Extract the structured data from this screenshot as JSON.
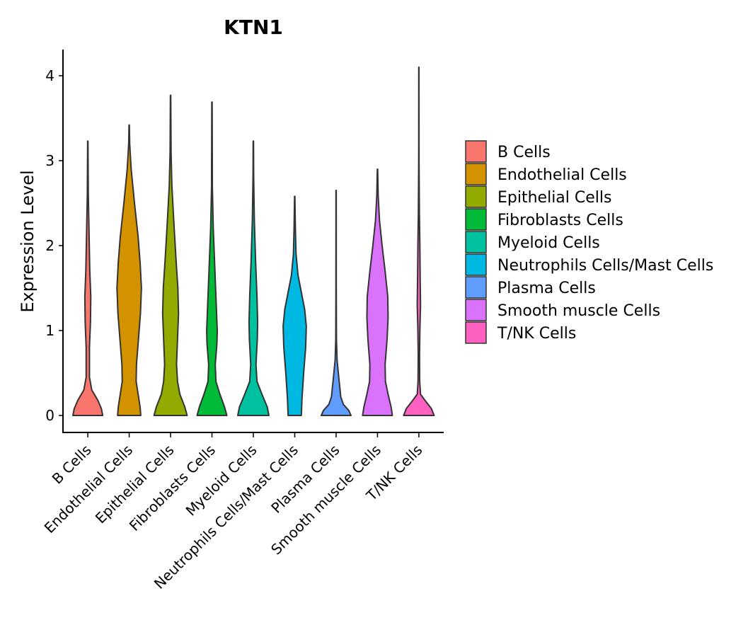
{
  "chart_data": {
    "type": "violin",
    "title": "KTN1",
    "xlabel": "",
    "ylabel": "Expression Level",
    "ylim": [
      0,
      4.3
    ],
    "yticks": [
      0,
      1,
      2,
      3,
      4
    ],
    "legend_position": "right",
    "categories": [
      "B Cells",
      "Endothelial Cells",
      "Epithelial Cells",
      "Fibroblasts Cells",
      "Myeloid Cells",
      "Neutrophils Cells/Mast Cells",
      "Plasma Cells",
      "Smooth muscle Cells",
      "T/NK Cells"
    ],
    "colors": [
      "#F8766D",
      "#D39200",
      "#93AA00",
      "#00BA38",
      "#00C19F",
      "#00B9E3",
      "#619CFF",
      "#DB72FB",
      "#FF61C3"
    ],
    "max_width": 0.8,
    "series": [
      {
        "name": "B Cells",
        "max": 3.23,
        "profile": [
          [
            0,
            0.45
          ],
          [
            0.08,
            0.41
          ],
          [
            0.18,
            0.3
          ],
          [
            0.3,
            0.12
          ],
          [
            0.45,
            0.05
          ],
          [
            0.8,
            0.05
          ],
          [
            1.1,
            0.08
          ],
          [
            1.4,
            0.09
          ],
          [
            1.7,
            0.06
          ],
          [
            2.1,
            0.04
          ],
          [
            2.6,
            0.015
          ],
          [
            3.23,
            0.005
          ]
        ]
      },
      {
        "name": "Endothelial Cells",
        "max": 3.42,
        "profile": [
          [
            0,
            0.35
          ],
          [
            0.1,
            0.33
          ],
          [
            0.25,
            0.27
          ],
          [
            0.4,
            0.21
          ],
          [
            0.6,
            0.22
          ],
          [
            0.9,
            0.28
          ],
          [
            1.2,
            0.34
          ],
          [
            1.5,
            0.37
          ],
          [
            1.8,
            0.33
          ],
          [
            2.1,
            0.27
          ],
          [
            2.5,
            0.16
          ],
          [
            2.9,
            0.06
          ],
          [
            3.2,
            0.015
          ],
          [
            3.42,
            0.005
          ]
        ]
      },
      {
        "name": "Epithelial Cells",
        "max": 3.77,
        "profile": [
          [
            0,
            0.5
          ],
          [
            0.1,
            0.43
          ],
          [
            0.25,
            0.28
          ],
          [
            0.4,
            0.21
          ],
          [
            0.6,
            0.18
          ],
          [
            0.9,
            0.21
          ],
          [
            1.2,
            0.24
          ],
          [
            1.5,
            0.22
          ],
          [
            1.8,
            0.17
          ],
          [
            2.2,
            0.11
          ],
          [
            2.7,
            0.04
          ],
          [
            3.1,
            0.015
          ],
          [
            3.77,
            0.005
          ]
        ]
      },
      {
        "name": "Fibroblasts Cells",
        "max": 3.69,
        "profile": [
          [
            0,
            0.45
          ],
          [
            0.1,
            0.38
          ],
          [
            0.25,
            0.24
          ],
          [
            0.4,
            0.12
          ],
          [
            0.6,
            0.1
          ],
          [
            0.85,
            0.15
          ],
          [
            1.0,
            0.16
          ],
          [
            1.3,
            0.13
          ],
          [
            1.7,
            0.09
          ],
          [
            2.2,
            0.04
          ],
          [
            2.7,
            0.012
          ],
          [
            3.69,
            0.005
          ]
        ]
      },
      {
        "name": "Myeloid Cells",
        "max": 3.23,
        "profile": [
          [
            0,
            0.47
          ],
          [
            0.1,
            0.42
          ],
          [
            0.25,
            0.26
          ],
          [
            0.4,
            0.11
          ],
          [
            0.6,
            0.08
          ],
          [
            0.9,
            0.12
          ],
          [
            1.1,
            0.13
          ],
          [
            1.4,
            0.11
          ],
          [
            1.8,
            0.07
          ],
          [
            2.3,
            0.03
          ],
          [
            2.8,
            0.01
          ],
          [
            3.23,
            0.005
          ]
        ]
      },
      {
        "name": "Neutrophils Cells/Mast Cells",
        "max": 2.58,
        "profile": [
          [
            0,
            0.2
          ],
          [
            0.2,
            0.22
          ],
          [
            0.5,
            0.27
          ],
          [
            0.8,
            0.33
          ],
          [
            1.05,
            0.35
          ],
          [
            1.25,
            0.3
          ],
          [
            1.45,
            0.2
          ],
          [
            1.65,
            0.1
          ],
          [
            1.9,
            0.04
          ],
          [
            2.2,
            0.02
          ],
          [
            2.58,
            0.005
          ]
        ]
      },
      {
        "name": "Plasma Cells",
        "max": 2.65,
        "profile": [
          [
            0,
            0.45
          ],
          [
            0.06,
            0.38
          ],
          [
            0.13,
            0.22
          ],
          [
            0.22,
            0.14
          ],
          [
            0.3,
            0.12
          ],
          [
            0.45,
            0.08
          ],
          [
            0.65,
            0.03
          ],
          [
            0.9,
            0.01
          ],
          [
            1.5,
            0.005
          ],
          [
            2.65,
            0.004
          ]
        ]
      },
      {
        "name": "Smooth muscle Cells",
        "max": 2.9,
        "profile": [
          [
            0,
            0.45
          ],
          [
            0.1,
            0.41
          ],
          [
            0.25,
            0.32
          ],
          [
            0.4,
            0.24
          ],
          [
            0.6,
            0.23
          ],
          [
            0.9,
            0.29
          ],
          [
            1.15,
            0.32
          ],
          [
            1.4,
            0.31
          ],
          [
            1.7,
            0.23
          ],
          [
            2.0,
            0.14
          ],
          [
            2.3,
            0.06
          ],
          [
            2.6,
            0.02
          ],
          [
            2.9,
            0.005
          ]
        ]
      },
      {
        "name": "T/NK Cells",
        "max": 4.1,
        "profile": [
          [
            0,
            0.46
          ],
          [
            0.08,
            0.38
          ],
          [
            0.16,
            0.22
          ],
          [
            0.25,
            0.05
          ],
          [
            0.4,
            0.025
          ],
          [
            0.7,
            0.02
          ],
          [
            1.0,
            0.03
          ],
          [
            1.3,
            0.05
          ],
          [
            1.6,
            0.04
          ],
          [
            2.0,
            0.03
          ],
          [
            2.4,
            0.015
          ],
          [
            3.0,
            0.005
          ],
          [
            4.1,
            0.003
          ]
        ]
      }
    ]
  }
}
